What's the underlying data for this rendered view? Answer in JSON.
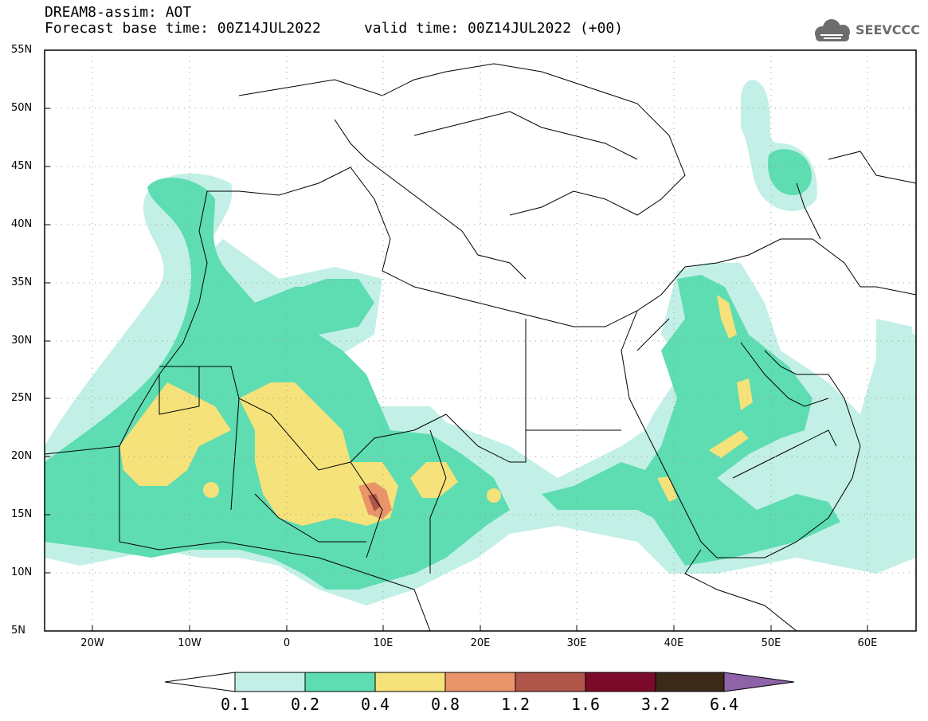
{
  "title": {
    "line1": "DREAM8-assim: AOT",
    "line2": "Forecast base time: 00Z14JUL2022     valid time: 00Z14JUL2022 (+00)"
  },
  "logo": {
    "text": "SEEVCCC",
    "icon": "cloud-logo-icon",
    "color": "#6d6d6d"
  },
  "map": {
    "lon_range": [
      -25,
      65
    ],
    "lat_range": [
      5,
      55
    ],
    "y_ticks": [
      "5N",
      "10N",
      "15N",
      "20N",
      "25N",
      "30N",
      "35N",
      "40N",
      "45N",
      "50N",
      "55N"
    ],
    "x_ticks": [
      "20W",
      "10W",
      "0",
      "10E",
      "20E",
      "30E",
      "40E",
      "50E",
      "60E"
    ],
    "grid": "dotted"
  },
  "colorbar": {
    "levels": [
      "0.1",
      "0.2",
      "0.4",
      "0.8",
      "1.2",
      "1.6",
      "3.2",
      "6.4"
    ],
    "colors": [
      "#ffffff",
      "#c2f0e6",
      "#5edcb2",
      "#f5e27a",
      "#e99569",
      "#b0554a",
      "#7c0a2b",
      "#3b2a18",
      "#8f63a8"
    ]
  }
}
